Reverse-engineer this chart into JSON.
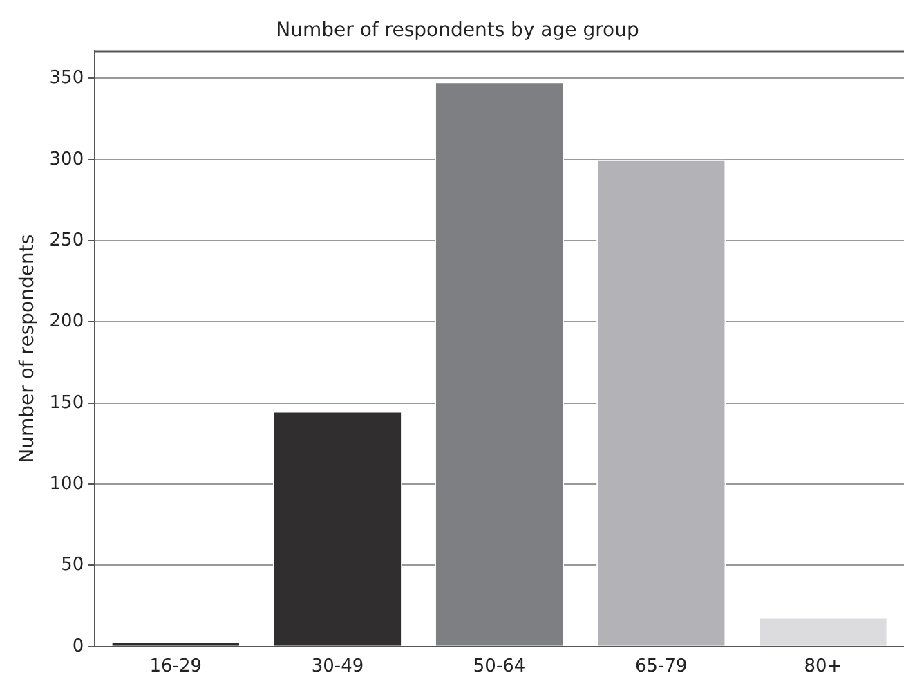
{
  "chart_data": {
    "type": "bar",
    "title": "Number of respondents by age group",
    "ylabel": "Number of respondents",
    "categories": [
      "16-29",
      "30-49",
      "50-64",
      "65-79",
      "80+"
    ],
    "values": [
      3,
      145,
      348,
      300,
      18
    ],
    "colors": [
      "#2d2b2c",
      "#302e2f",
      "#7e7f82",
      "#b3b3b7",
      "#dcdcde"
    ],
    "ylim": [
      0,
      367
    ],
    "yticks": [
      0,
      50,
      100,
      150,
      200,
      250,
      300,
      350
    ],
    "grid": "y",
    "legend": false
  }
}
